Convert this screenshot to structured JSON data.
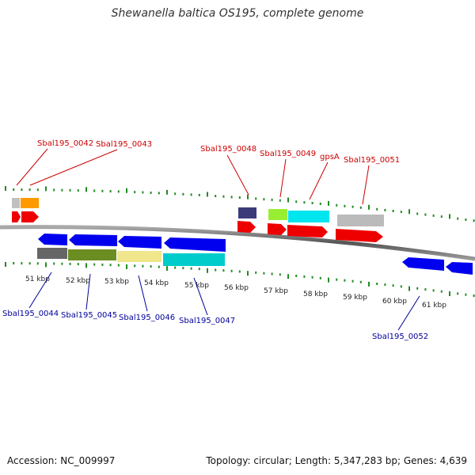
{
  "title": "Shewanella baltica OS195, complete genome",
  "footer": {
    "accession": "Accession: NC_009997",
    "summary": "Topology: circular; Length: 5,347,283 bp; Genes: 4,639"
  },
  "colors": {
    "top_label": "#cc0000",
    "bottom_label": "#000099",
    "tick": "#228b22",
    "backbone": "#777777"
  },
  "kbp_labels": [
    "51 kbp",
    "52 kbp",
    "53 kbp",
    "54 kbp",
    "55 kbp",
    "56 kbp",
    "57 kbp",
    "58 kbp",
    "59 kbp",
    "60 kbp",
    "61 kbp"
  ],
  "top_labels": [
    {
      "text": "Sbal195_0042"
    },
    {
      "text": "Sbal195_0043"
    },
    {
      "text": "Sbal195_0048"
    },
    {
      "text": "Sbal195_0049"
    },
    {
      "text": "gpsA"
    },
    {
      "text": "Sbal195_0051"
    }
  ],
  "bottom_labels": [
    {
      "text": "Sbal195_0044"
    },
    {
      "text": "Sbal195_0045"
    },
    {
      "text": "Sbal195_0046"
    },
    {
      "text": "Sbal195_0047"
    },
    {
      "text": "Sbal195_0052"
    }
  ]
}
